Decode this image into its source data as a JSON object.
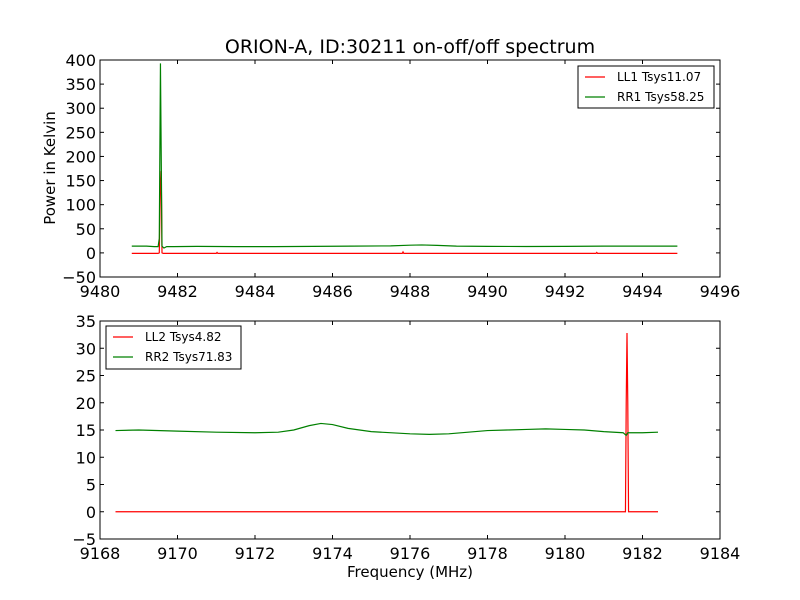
{
  "chart_data": [
    {
      "type": "line",
      "title": "ORION-A, ID:30211 on-off/off spectrum",
      "xlabel": "",
      "ylabel": "Power in Kelvin",
      "xlim": [
        9480,
        9496
      ],
      "ylim": [
        -50,
        400
      ],
      "xticks": [
        "9480",
        "9482",
        "9484",
        "9486",
        "9488",
        "9490",
        "9492",
        "9494",
        "9496"
      ],
      "yticks": [
        "−50",
        "0",
        "50",
        "100",
        "150",
        "200",
        "250",
        "300",
        "350",
        "400"
      ],
      "legend_position": "top-right",
      "series": [
        {
          "name": "LL1 Tsys11.07",
          "color": "#ff0000",
          "points": [
            [
              9480.82,
              -1
            ],
            [
              9481.4,
              -1
            ],
            [
              9481.5,
              -1
            ],
            [
              9481.53,
              0
            ],
            [
              9481.56,
              150
            ],
            [
              9481.58,
              170
            ],
            [
              9481.6,
              0
            ],
            [
              9481.63,
              -1
            ],
            [
              9483.0,
              -1
            ],
            [
              9483.02,
              1
            ],
            [
              9483.04,
              -1
            ],
            [
              9487.8,
              -1
            ],
            [
              9487.82,
              2
            ],
            [
              9487.84,
              -1
            ],
            [
              9492.8,
              -1
            ],
            [
              9492.82,
              1
            ],
            [
              9492.84,
              -1
            ],
            [
              9494.9,
              -1
            ]
          ]
        },
        {
          "name": "RR1 Tsys58.25",
          "color": "#008000",
          "points": [
            [
              9480.82,
              14
            ],
            [
              9481.2,
              14
            ],
            [
              9481.4,
              13
            ],
            [
              9481.5,
              13
            ],
            [
              9481.53,
              30
            ],
            [
              9481.56,
              393
            ],
            [
              9481.58,
              200
            ],
            [
              9481.6,
              14
            ],
            [
              9481.65,
              10
            ],
            [
              9481.72,
              13
            ],
            [
              9481.9,
              13
            ],
            [
              9482.5,
              13.5
            ],
            [
              9483.5,
              13
            ],
            [
              9484.5,
              13
            ],
            [
              9485.5,
              13.5
            ],
            [
              9486.5,
              14
            ],
            [
              9487.5,
              14.5
            ],
            [
              9488.0,
              16
            ],
            [
              9488.3,
              16.5
            ],
            [
              9488.7,
              15.5
            ],
            [
              9489.2,
              14
            ],
            [
              9490.0,
              13.5
            ],
            [
              9491.0,
              13.3
            ],
            [
              9492.0,
              13.5
            ],
            [
              9493.0,
              14
            ],
            [
              9494.0,
              14
            ],
            [
              9494.9,
              14
            ]
          ]
        }
      ]
    },
    {
      "type": "line",
      "title": "",
      "xlabel": "Frequency (MHz)",
      "ylabel": "",
      "xlim": [
        9168,
        9184
      ],
      "ylim": [
        -5,
        35
      ],
      "xticks": [
        "9168",
        "9170",
        "9172",
        "9174",
        "9176",
        "9178",
        "9180",
        "9182",
        "9184"
      ],
      "yticks": [
        "−5",
        "0",
        "5",
        "10",
        "15",
        "20",
        "25",
        "30",
        "35"
      ],
      "legend_position": "top-left",
      "series": [
        {
          "name": "LL2 Tsys4.82",
          "color": "#ff0000",
          "points": [
            [
              9168.4,
              0
            ],
            [
              9181.5,
              0
            ],
            [
              9181.56,
              0
            ],
            [
              9181.58,
              20
            ],
            [
              9181.6,
              32.8
            ],
            [
              9181.62,
              20
            ],
            [
              9181.64,
              0
            ],
            [
              9181.7,
              0
            ],
            [
              9182.4,
              0
            ]
          ]
        },
        {
          "name": "RR2 Tsys71.83",
          "color": "#008000",
          "points": [
            [
              9168.4,
              14.9
            ],
            [
              9169.0,
              15.0
            ],
            [
              9170.0,
              14.8
            ],
            [
              9171.0,
              14.6
            ],
            [
              9172.0,
              14.5
            ],
            [
              9172.6,
              14.6
            ],
            [
              9173.0,
              15.0
            ],
            [
              9173.4,
              15.8
            ],
            [
              9173.7,
              16.2
            ],
            [
              9174.0,
              16.0
            ],
            [
              9174.4,
              15.3
            ],
            [
              9175.0,
              14.7
            ],
            [
              9176.0,
              14.3
            ],
            [
              9176.5,
              14.2
            ],
            [
              9177.0,
              14.3
            ],
            [
              9177.5,
              14.6
            ],
            [
              9178.0,
              14.9
            ],
            [
              9178.5,
              15.0
            ],
            [
              9179.0,
              15.1
            ],
            [
              9179.5,
              15.2
            ],
            [
              9180.0,
              15.1
            ],
            [
              9180.5,
              15.0
            ],
            [
              9181.0,
              14.7
            ],
            [
              9181.5,
              14.5
            ],
            [
              9181.58,
              14.0
            ],
            [
              9181.62,
              14.5
            ],
            [
              9182.0,
              14.5
            ],
            [
              9182.4,
              14.6
            ]
          ]
        }
      ]
    }
  ]
}
